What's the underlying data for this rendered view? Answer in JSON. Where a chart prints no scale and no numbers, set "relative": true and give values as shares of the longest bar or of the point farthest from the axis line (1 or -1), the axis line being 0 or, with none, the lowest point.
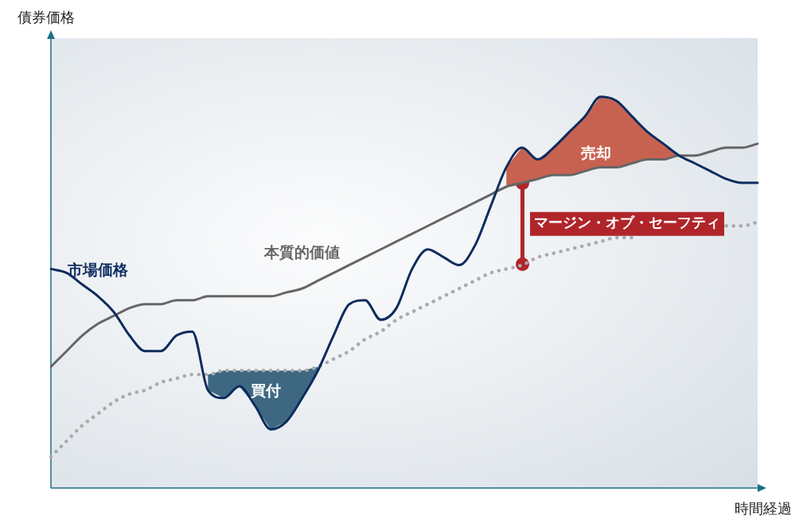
{
  "chart_data": {
    "type": "line",
    "relative": true,
    "xlabel": "時間経過",
    "ylabel": "債券価格",
    "legend": false,
    "marker": "none",
    "categories": [
      null,
      null,
      null,
      null,
      null,
      null,
      null,
      null,
      null,
      null,
      null,
      null,
      null,
      null,
      null,
      null,
      null,
      null,
      null,
      null,
      null,
      null,
      null,
      null,
      null,
      null,
      null,
      null,
      null,
      null,
      null,
      null,
      null,
      null,
      null,
      null,
      null,
      null,
      null,
      null,
      null,
      null,
      null,
      null,
      null,
      null
    ],
    "series": [
      {
        "name": "市場価格",
        "color": "#0d2c5e",
        "line_style": "solid",
        "values": [
          0.56,
          0.55,
          0.52,
          0.49,
          0.45,
          0.39,
          0.35,
          0.35,
          0.39,
          0.4,
          0.25,
          0.23,
          0.26,
          0.21,
          0.15,
          0.17,
          0.23,
          0.3,
          0.39,
          0.47,
          0.48,
          0.43,
          0.46,
          0.56,
          0.61,
          0.59,
          0.57,
          0.62,
          0.72,
          0.82,
          0.87,
          0.84,
          0.87,
          0.91,
          0.95,
          1,
          0.99,
          0.95,
          0.91,
          0.88,
          0.85,
          0.83,
          0.81,
          0.79,
          0.78,
          0.78
        ]
      },
      {
        "name": "本質的価値",
        "color": "#666666",
        "line_style": "solid",
        "values": [
          0.31,
          0.35,
          0.39,
          0.42,
          0.44,
          0.46,
          0.47,
          0.47,
          0.48,
          0.48,
          0.49,
          0.49,
          0.49,
          0.49,
          0.49,
          0.5,
          0.51,
          0.53,
          0.55,
          0.57,
          0.59,
          0.61,
          0.63,
          0.65,
          0.67,
          0.69,
          0.71,
          0.73,
          0.75,
          0.77,
          0.78,
          0.79,
          0.8,
          0.8,
          0.81,
          0.82,
          0.82,
          0.83,
          0.84,
          0.84,
          0.85,
          0.85,
          0.86,
          0.87,
          0.87,
          0.88
        ],
        "lower": [
          null,
          null,
          null,
          null,
          null,
          null,
          null,
          null,
          null,
          null,
          null,
          null,
          null,
          null,
          null,
          null,
          null,
          null,
          null,
          null,
          null,
          null,
          null,
          null,
          null,
          null,
          null,
          null,
          null,
          0.77,
          0.78,
          0.79,
          0.8,
          0.8,
          0.81,
          0.82,
          0.82,
          0.83,
          0.84,
          0.84,
          0.85,
          null,
          null,
          null,
          null,
          null
        ],
        "upper": [
          null,
          null,
          null,
          null,
          null,
          null,
          null,
          null,
          null,
          null,
          null,
          null,
          null,
          null,
          null,
          null,
          null,
          null,
          null,
          null,
          null,
          null,
          null,
          null,
          null,
          null,
          null,
          null,
          null,
          0.82,
          0.87,
          0.84,
          0.87,
          0.91,
          0.95,
          1,
          0.99,
          0.95,
          0.91,
          0.88,
          0.85,
          null,
          null,
          null,
          null,
          null
        ]
      },
      {
        "color": "#a9abae",
        "line_style": "dotted",
        "values": [
          0.08,
          0.12,
          0.16,
          0.19,
          0.22,
          0.24,
          0.25,
          0.27,
          0.28,
          0.29,
          0.29,
          0.3,
          0.3,
          0.3,
          0.3,
          0.3,
          0.3,
          0.31,
          0.33,
          0.35,
          0.38,
          0.4,
          0.43,
          0.45,
          0.47,
          0.49,
          0.51,
          0.53,
          0.55,
          0.56,
          0.57,
          0.59,
          0.6,
          0.61,
          0.62,
          0.63,
          0.64,
          0.64,
          null,
          null,
          null,
          null,
          null,
          0.67,
          0.67,
          0.68
        ],
        "lower": [
          null,
          null,
          null,
          null,
          null,
          null,
          null,
          null,
          null,
          null,
          0.25,
          0.23,
          0.26,
          0.21,
          0.15,
          0.17,
          0.23,
          0.3,
          null,
          null,
          null,
          null,
          null,
          null,
          null,
          null,
          null,
          null,
          null,
          null,
          null,
          null,
          null,
          null,
          null,
          null,
          null,
          null,
          null,
          null,
          null,
          null,
          null,
          null,
          null,
          null
        ],
        "upper": [
          null,
          null,
          null,
          null,
          null,
          null,
          null,
          null,
          null,
          null,
          0.29,
          0.3,
          0.3,
          0.3,
          0.3,
          0.3,
          0.3,
          0.31,
          null,
          null,
          null,
          null,
          null,
          null,
          null,
          null,
          null,
          null,
          null,
          null,
          null,
          null,
          null,
          null,
          null,
          null,
          null,
          null,
          null,
          null,
          null,
          null,
          null,
          null,
          null,
          null
        ]
      }
    ],
    "annotations": [
      "買付",
      "売却",
      "マージン・オブ・セーフティ"
    ]
  }
}
